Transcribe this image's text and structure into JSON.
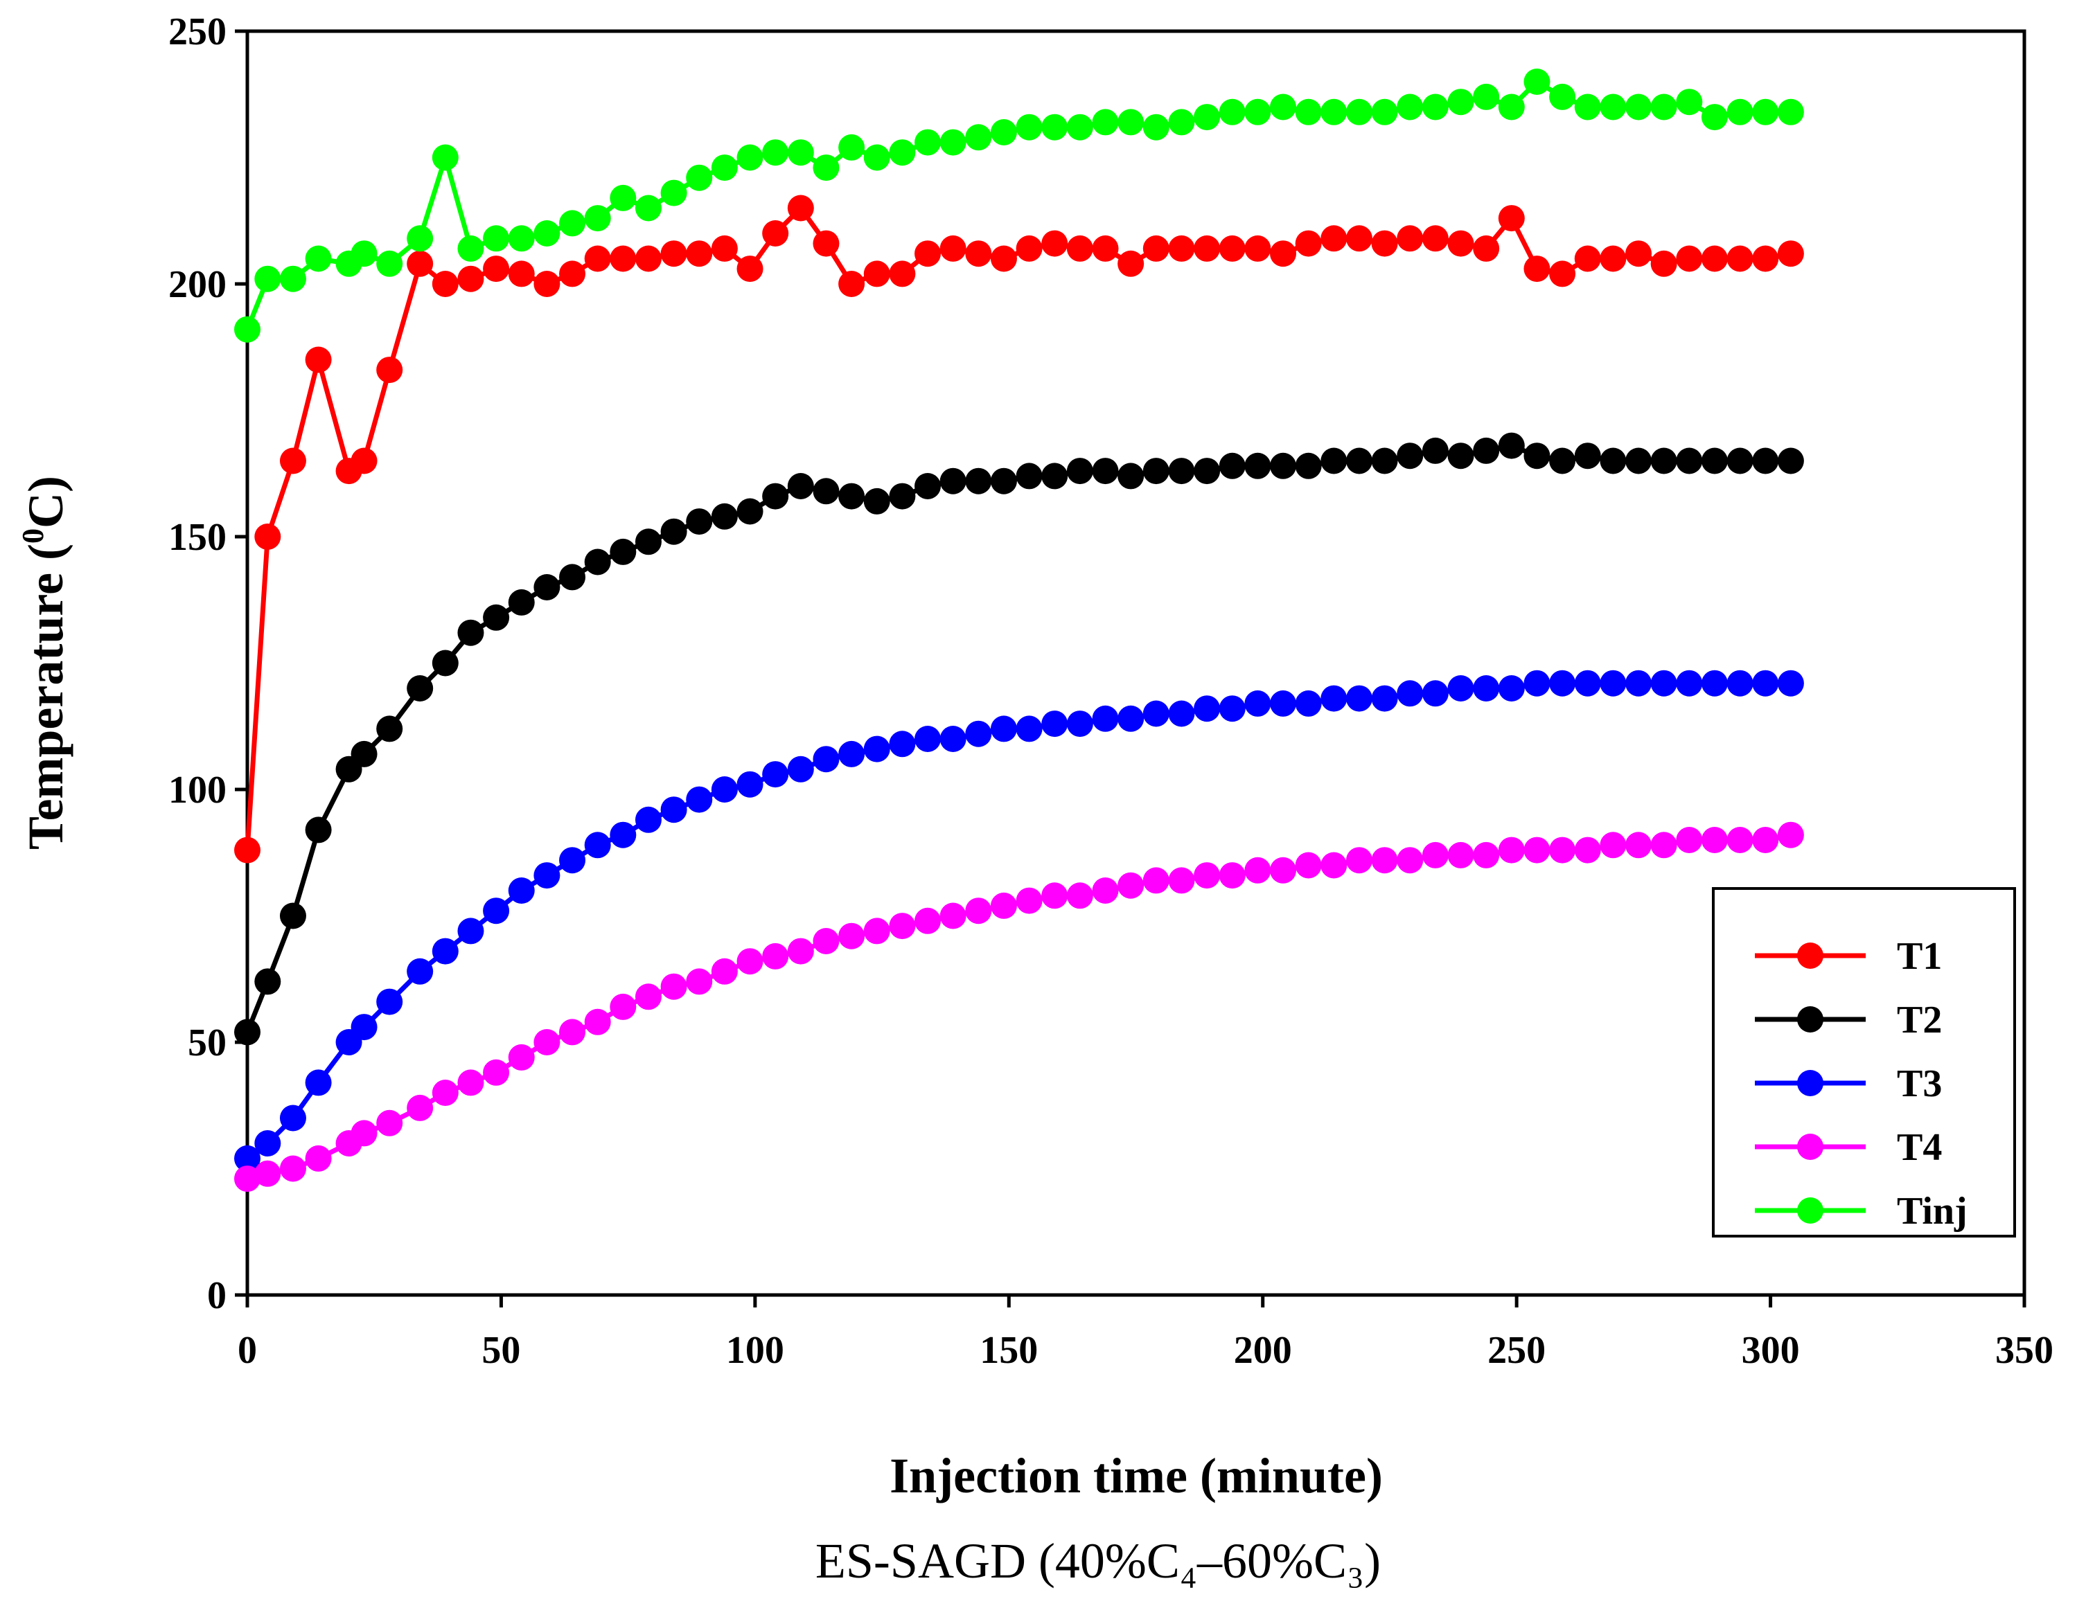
{
  "chart_data": {
    "type": "line",
    "title": "",
    "xlabel": "Injection time (minute)",
    "ylabel": "Temperature (⁰C)",
    "ylabel_parts": {
      "before": "Temperature (",
      "sup": "0",
      "after": "C)"
    },
    "caption": "ES-SAGD (40%C₄–60%C₃)",
    "xlim": [
      0,
      350
    ],
    "ylim": [
      0,
      250
    ],
    "xticks": [
      0,
      50,
      100,
      150,
      200,
      250,
      300,
      350
    ],
    "yticks": [
      0,
      50,
      100,
      150,
      200,
      250
    ],
    "xtick_labels": [
      "0",
      "50",
      "100",
      "150",
      "200",
      "250",
      "300",
      "350"
    ],
    "ytick_labels": [
      "0",
      "50",
      "100",
      "150",
      "200",
      "250"
    ],
    "grid": false,
    "legend_position": "bottom-right",
    "x": [
      0,
      4,
      9,
      14,
      20,
      23,
      28,
      34,
      39,
      44,
      49,
      54,
      59,
      64,
      69,
      74,
      79,
      84,
      89,
      94,
      99,
      104,
      109,
      114,
      119,
      124,
      129,
      134,
      139,
      144,
      149,
      154,
      159,
      164,
      169,
      174,
      179,
      184,
      189,
      194,
      199,
      204,
      209,
      214,
      219,
      224,
      229,
      234,
      239,
      244,
      249,
      254,
      259,
      264,
      269,
      274,
      279,
      284,
      289,
      294,
      299,
      304
    ],
    "series": [
      {
        "name": "T1",
        "color": "#ff0000",
        "values": [
          88,
          150,
          165,
          185,
          163,
          165,
          183,
          204,
          200,
          201,
          203,
          202,
          200,
          202,
          205,
          205,
          205,
          206,
          206,
          207,
          203,
          210,
          215,
          208,
          200,
          202,
          202,
          206,
          207,
          206,
          205,
          207,
          208,
          207,
          207,
          204,
          207,
          207,
          207,
          207,
          207,
          206,
          208,
          209,
          209,
          208,
          209,
          209,
          208,
          207,
          213,
          203,
          202,
          205,
          205,
          206,
          204,
          205,
          205,
          205,
          205,
          206
        ]
      },
      {
        "name": "T2",
        "color": "#000000",
        "values": [
          52,
          62,
          75,
          92,
          104,
          107,
          112,
          120,
          125,
          131,
          134,
          137,
          140,
          142,
          145,
          147,
          149,
          151,
          153,
          154,
          155,
          158,
          160,
          159,
          158,
          157,
          158,
          160,
          161,
          161,
          161,
          162,
          162,
          163,
          163,
          162,
          163,
          163,
          163,
          164,
          164,
          164,
          164,
          165,
          165,
          165,
          166,
          167,
          166,
          167,
          168,
          166,
          165,
          166,
          165,
          165,
          165,
          165,
          165,
          165,
          165,
          165
        ]
      },
      {
        "name": "T3",
        "color": "#0000ff",
        "values": [
          27,
          30,
          35,
          42,
          50,
          53,
          58,
          64,
          68,
          72,
          76,
          80,
          83,
          86,
          89,
          91,
          94,
          96,
          98,
          100,
          101,
          103,
          104,
          106,
          107,
          108,
          109,
          110,
          110,
          111,
          112,
          112,
          113,
          113,
          114,
          114,
          115,
          115,
          116,
          116,
          117,
          117,
          117,
          118,
          118,
          118,
          119,
          119,
          120,
          120,
          120,
          121,
          121,
          121,
          121,
          121,
          121,
          121,
          121,
          121,
          121,
          121
        ]
      },
      {
        "name": "T4",
        "color": "#ff00ff",
        "values": [
          23,
          24,
          25,
          27,
          30,
          32,
          34,
          37,
          40,
          42,
          44,
          47,
          50,
          52,
          54,
          57,
          59,
          61,
          62,
          64,
          66,
          67,
          68,
          70,
          71,
          72,
          73,
          74,
          75,
          76,
          77,
          78,
          79,
          79,
          80,
          81,
          82,
          82,
          83,
          83,
          84,
          84,
          85,
          85,
          86,
          86,
          86,
          87,
          87,
          87,
          88,
          88,
          88,
          88,
          89,
          89,
          89,
          90,
          90,
          90,
          90,
          91
        ]
      },
      {
        "name": "Tinj",
        "color": "#00ff00",
        "values": [
          191,
          201,
          201,
          205,
          204,
          206,
          204,
          209,
          225,
          207,
          209,
          209,
          210,
          212,
          213,
          217,
          215,
          218,
          221,
          223,
          225,
          226,
          226,
          223,
          227,
          225,
          226,
          228,
          228,
          229,
          230,
          231,
          231,
          231,
          232,
          232,
          231,
          232,
          233,
          234,
          234,
          235,
          234,
          234,
          234,
          234,
          235,
          235,
          236,
          237,
          235,
          240,
          237,
          235,
          235,
          235,
          235,
          236,
          233,
          234,
          234,
          234
        ]
      }
    ]
  }
}
